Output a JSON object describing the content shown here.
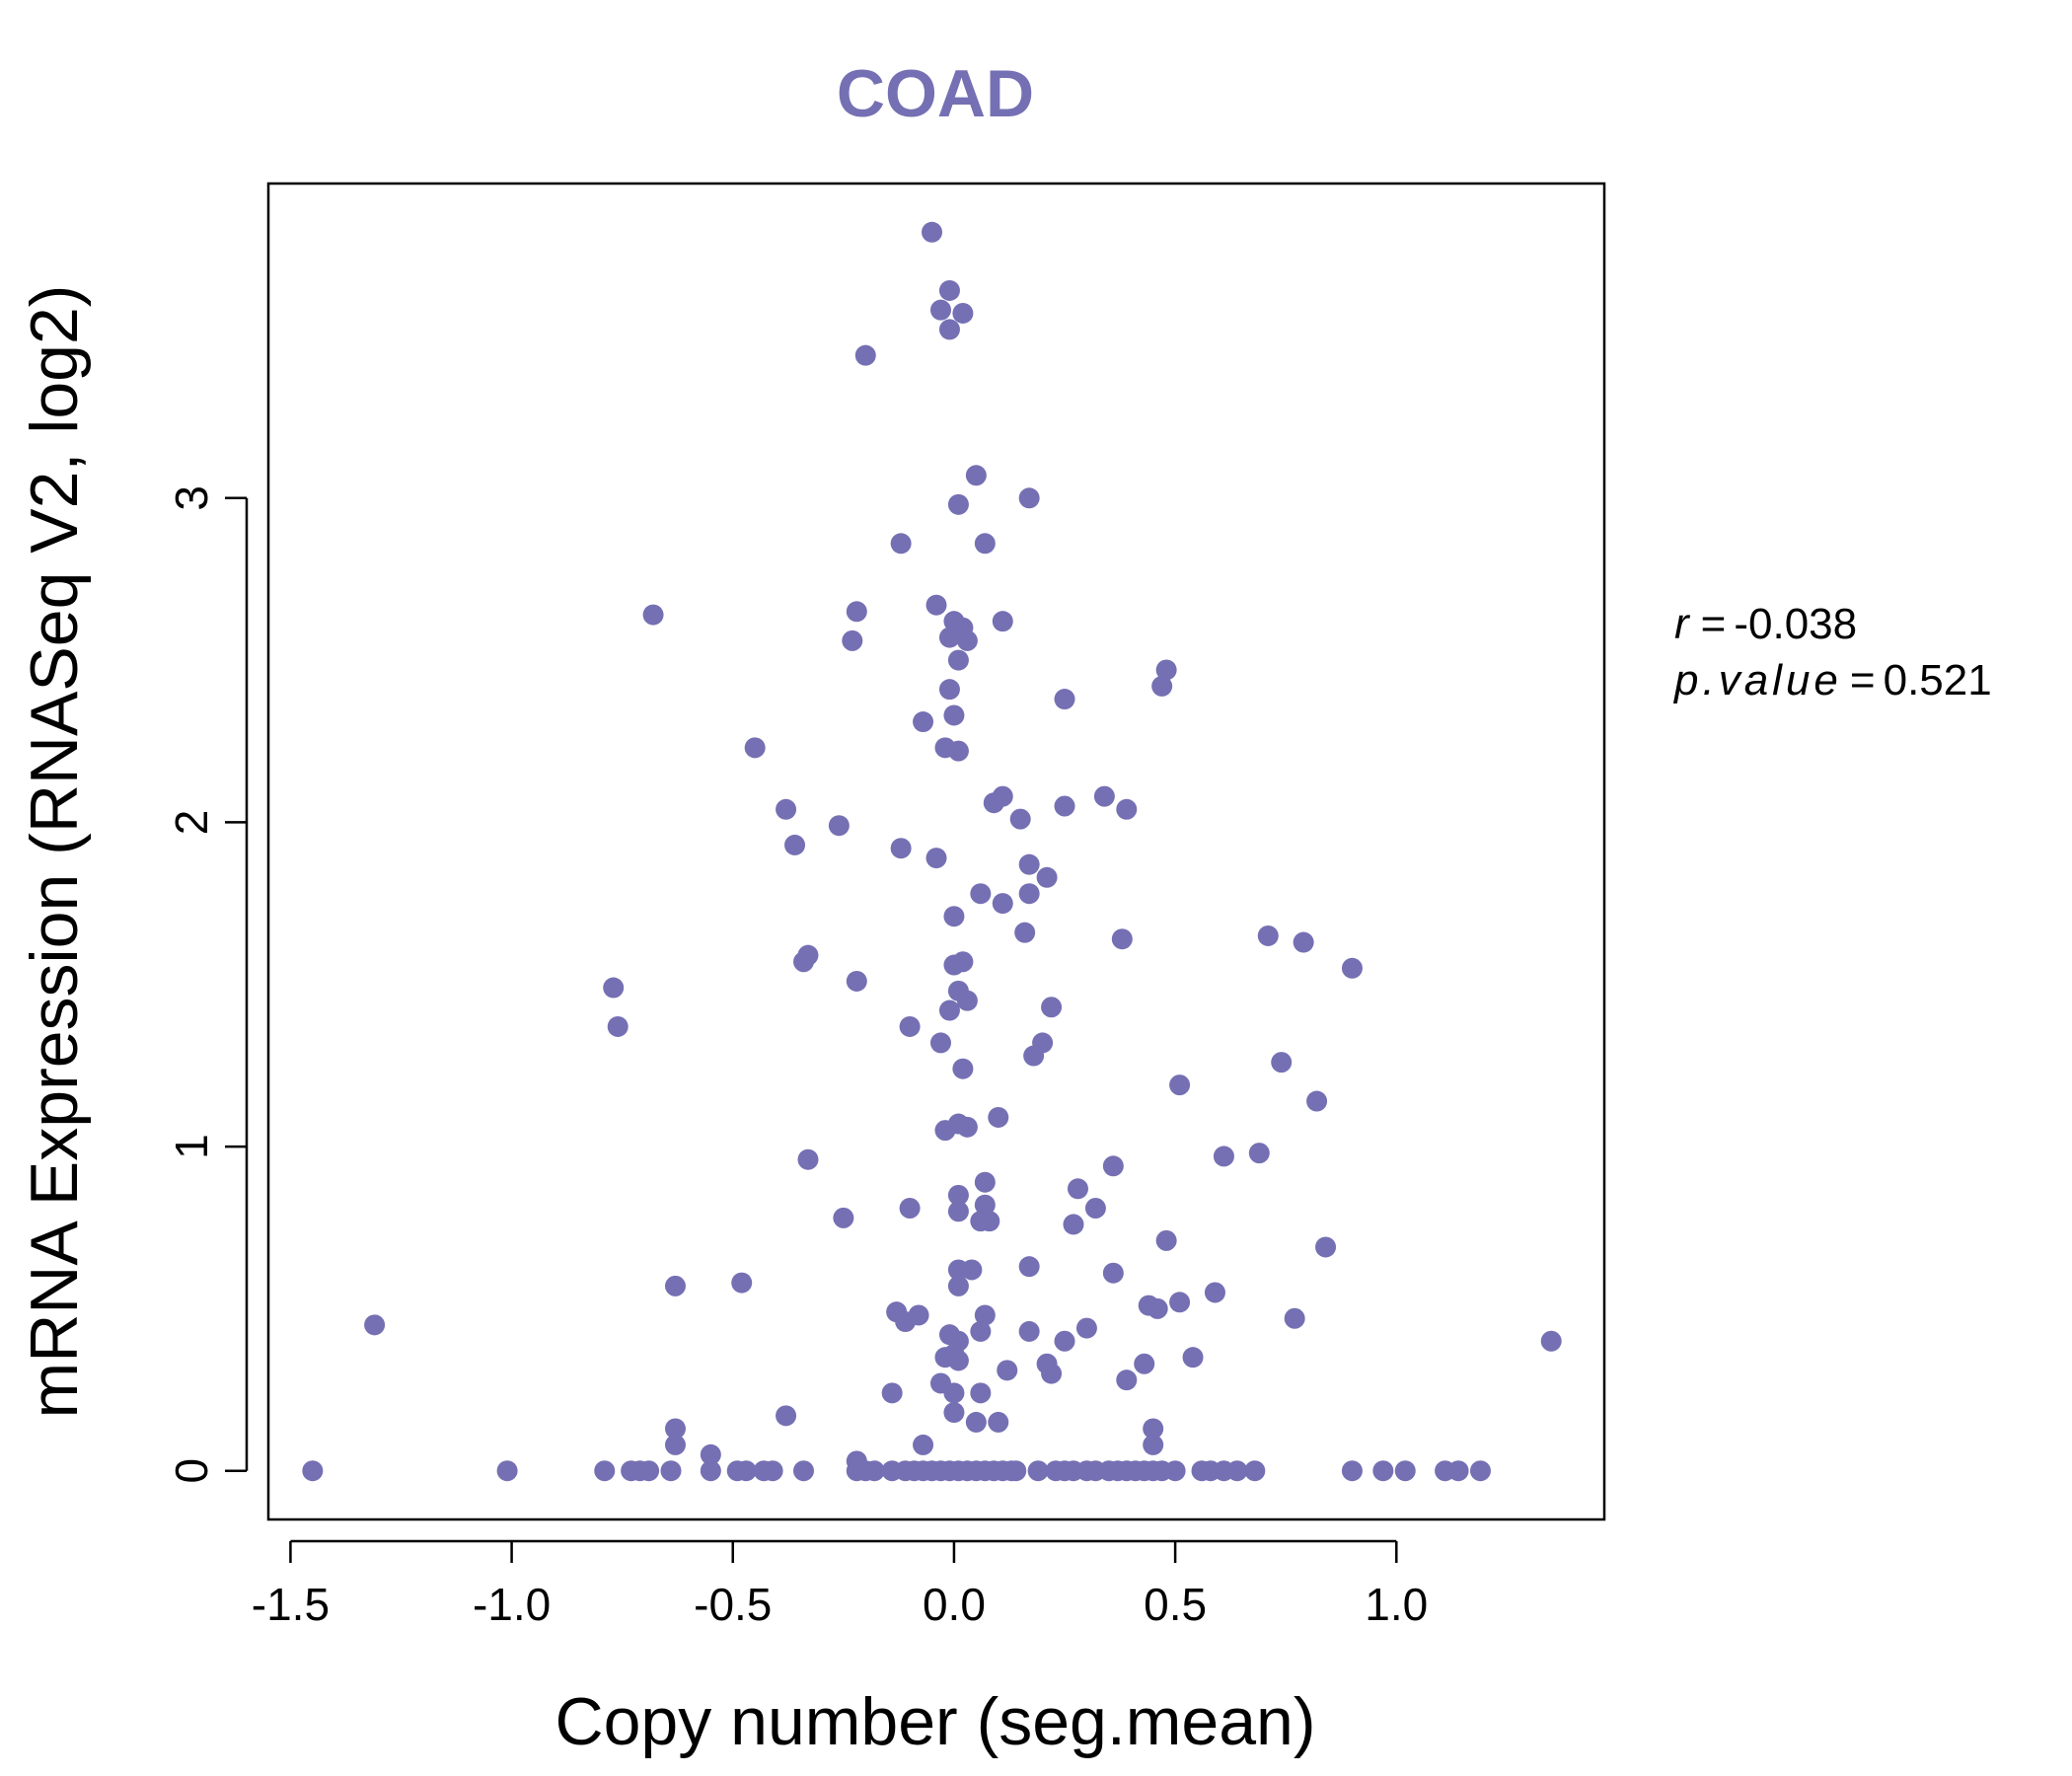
{
  "colors": {
    "point": "#7570b3",
    "title": "#7570b3",
    "axis": "#000000",
    "background": "#ffffff"
  },
  "chart_data": {
    "type": "scatter",
    "title": "COAD",
    "xlabel": "Copy number (seg.mean)",
    "ylabel": "mRNA Expression (RNASeq V2, log2)",
    "xlim": [
      -1.55,
      1.47
    ],
    "ylim": [
      -0.15,
      3.97
    ],
    "xticks": [
      -1.5,
      -1.0,
      -0.5,
      0.0,
      0.5,
      1.0
    ],
    "xtick_labels": [
      "-1.5",
      "-1.0",
      "-0.5",
      "0.0",
      "0.5",
      "1.0"
    ],
    "yticks": [
      0,
      1,
      2,
      3
    ],
    "ytick_labels": [
      "0",
      "1",
      "2",
      "3"
    ],
    "annotation": {
      "r_label": "r",
      "r_value": "-0.038",
      "p_label": "p.value",
      "p_value": "0.521",
      "equals": "="
    },
    "points": [
      [
        -0.05,
        3.82
      ],
      [
        -0.01,
        3.64
      ],
      [
        -0.03,
        3.58
      ],
      [
        0.02,
        3.57
      ],
      [
        -0.01,
        3.52
      ],
      [
        -0.2,
        3.44
      ],
      [
        0.05,
        3.07
      ],
      [
        0.17,
        3.0
      ],
      [
        0.01,
        2.98
      ],
      [
        -0.12,
        2.86
      ],
      [
        0.07,
        2.86
      ],
      [
        -0.68,
        2.64
      ],
      [
        -0.04,
        2.67
      ],
      [
        -0.22,
        2.65
      ],
      [
        0.0,
        2.62
      ],
      [
        0.11,
        2.62
      ],
      [
        0.02,
        2.6
      ],
      [
        -0.01,
        2.57
      ],
      [
        0.03,
        2.56
      ],
      [
        -0.23,
        2.56
      ],
      [
        0.01,
        2.5
      ],
      [
        0.48,
        2.47
      ],
      [
        0.47,
        2.42
      ],
      [
        -0.01,
        2.41
      ],
      [
        0.25,
        2.38
      ],
      [
        0.0,
        2.33
      ],
      [
        -0.07,
        2.31
      ],
      [
        -0.45,
        2.23
      ],
      [
        -0.02,
        2.23
      ],
      [
        0.01,
        2.22
      ],
      [
        0.11,
        2.08
      ],
      [
        0.34,
        2.08
      ],
      [
        0.09,
        2.06
      ],
      [
        0.25,
        2.05
      ],
      [
        0.39,
        2.04
      ],
      [
        -0.38,
        2.04
      ],
      [
        0.15,
        2.01
      ],
      [
        -0.26,
        1.99
      ],
      [
        -0.36,
        1.93
      ],
      [
        -0.12,
        1.92
      ],
      [
        -0.04,
        1.89
      ],
      [
        0.17,
        1.87
      ],
      [
        0.21,
        1.83
      ],
      [
        0.06,
        1.78
      ],
      [
        0.17,
        1.78
      ],
      [
        0.11,
        1.75
      ],
      [
        0.0,
        1.71
      ],
      [
        0.71,
        1.65
      ],
      [
        0.16,
        1.66
      ],
      [
        0.38,
        1.64
      ],
      [
        0.79,
        1.63
      ],
      [
        -0.33,
        1.59
      ],
      [
        -0.34,
        1.57
      ],
      [
        0.02,
        1.57
      ],
      [
        0.0,
        1.56
      ],
      [
        0.9,
        1.55
      ],
      [
        -0.22,
        1.51
      ],
      [
        -0.77,
        1.49
      ],
      [
        0.01,
        1.48
      ],
      [
        0.03,
        1.45
      ],
      [
        0.22,
        1.43
      ],
      [
        -0.01,
        1.42
      ],
      [
        -0.76,
        1.37
      ],
      [
        -0.1,
        1.37
      ],
      [
        -0.03,
        1.32
      ],
      [
        0.2,
        1.32
      ],
      [
        0.18,
        1.28
      ],
      [
        0.74,
        1.26
      ],
      [
        0.02,
        1.24
      ],
      [
        0.51,
        1.19
      ],
      [
        0.82,
        1.14
      ],
      [
        0.1,
        1.09
      ],
      [
        0.01,
        1.07
      ],
      [
        0.03,
        1.06
      ],
      [
        -0.02,
        1.05
      ],
      [
        0.61,
        0.97
      ],
      [
        0.69,
        0.98
      ],
      [
        -0.33,
        0.96
      ],
      [
        0.36,
        0.94
      ],
      [
        0.07,
        0.89
      ],
      [
        0.28,
        0.87
      ],
      [
        0.01,
        0.85
      ],
      [
        0.07,
        0.82
      ],
      [
        -0.1,
        0.81
      ],
      [
        0.32,
        0.81
      ],
      [
        0.01,
        0.8
      ],
      [
        -0.25,
        0.78
      ],
      [
        0.06,
        0.77
      ],
      [
        0.08,
        0.77
      ],
      [
        0.27,
        0.76
      ],
      [
        0.48,
        0.71
      ],
      [
        0.84,
        0.69
      ],
      [
        0.17,
        0.63
      ],
      [
        0.01,
        0.62
      ],
      [
        0.04,
        0.62
      ],
      [
        0.36,
        0.61
      ],
      [
        -0.48,
        0.58
      ],
      [
        -0.63,
        0.57
      ],
      [
        0.01,
        0.57
      ],
      [
        0.59,
        0.55
      ],
      [
        0.51,
        0.52
      ],
      [
        0.44,
        0.51
      ],
      [
        0.46,
        0.5
      ],
      [
        -0.13,
        0.49
      ],
      [
        0.07,
        0.48
      ],
      [
        -0.08,
        0.48
      ],
      [
        -0.11,
        0.46
      ],
      [
        0.77,
        0.47
      ],
      [
        -1.31,
        0.45
      ],
      [
        0.3,
        0.44
      ],
      [
        0.17,
        0.43
      ],
      [
        0.06,
        0.43
      ],
      [
        -0.01,
        0.42
      ],
      [
        0.01,
        0.4
      ],
      [
        0.25,
        0.4
      ],
      [
        1.35,
        0.4
      ],
      [
        0.0,
        0.36
      ],
      [
        -0.02,
        0.35
      ],
      [
        0.54,
        0.35
      ],
      [
        0.01,
        0.34
      ],
      [
        0.43,
        0.33
      ],
      [
        0.21,
        0.33
      ],
      [
        0.12,
        0.31
      ],
      [
        0.22,
        0.3
      ],
      [
        0.39,
        0.28
      ],
      [
        -0.03,
        0.27
      ],
      [
        0.0,
        0.24
      ],
      [
        0.06,
        0.24
      ],
      [
        -0.14,
        0.24
      ],
      [
        0.0,
        0.18
      ],
      [
        -0.38,
        0.17
      ],
      [
        0.05,
        0.15
      ],
      [
        0.1,
        0.15
      ],
      [
        -0.63,
        0.13
      ],
      [
        0.45,
        0.13
      ],
      [
        -0.63,
        0.08
      ],
      [
        -0.07,
        0.08
      ],
      [
        0.45,
        0.08
      ],
      [
        -0.55,
        0.05
      ],
      [
        -0.22,
        0.03
      ],
      [
        -1.45,
        0.0
      ],
      [
        -1.01,
        0.0
      ],
      [
        -0.79,
        0.0
      ],
      [
        -0.73,
        0.0
      ],
      [
        -0.71,
        0.0
      ],
      [
        -0.69,
        0.0
      ],
      [
        -0.64,
        0.0
      ],
      [
        -0.55,
        0.0
      ],
      [
        -0.49,
        0.0
      ],
      [
        -0.47,
        0.0
      ],
      [
        -0.43,
        0.0
      ],
      [
        -0.41,
        0.0
      ],
      [
        -0.34,
        0.0
      ],
      [
        -0.22,
        0.0
      ],
      [
        -0.2,
        0.0
      ],
      [
        -0.18,
        0.0
      ],
      [
        -0.14,
        0.0
      ],
      [
        -0.11,
        0.0
      ],
      [
        -0.09,
        0.0
      ],
      [
        -0.07,
        0.0
      ],
      [
        -0.05,
        0.0
      ],
      [
        -0.03,
        0.0
      ],
      [
        -0.01,
        0.0
      ],
      [
        0.01,
        0.0
      ],
      [
        0.03,
        0.0
      ],
      [
        0.05,
        0.0
      ],
      [
        0.07,
        0.0
      ],
      [
        0.09,
        0.0
      ],
      [
        0.11,
        0.0
      ],
      [
        0.13,
        0.0
      ],
      [
        0.14,
        0.0
      ],
      [
        0.19,
        0.0
      ],
      [
        0.23,
        0.0
      ],
      [
        0.25,
        0.0
      ],
      [
        0.27,
        0.0
      ],
      [
        0.3,
        0.0
      ],
      [
        0.32,
        0.0
      ],
      [
        0.35,
        0.0
      ],
      [
        0.37,
        0.0
      ],
      [
        0.39,
        0.0
      ],
      [
        0.41,
        0.0
      ],
      [
        0.43,
        0.0
      ],
      [
        0.45,
        0.0
      ],
      [
        0.47,
        0.0
      ],
      [
        0.5,
        0.0
      ],
      [
        0.56,
        0.0
      ],
      [
        0.58,
        0.0
      ],
      [
        0.61,
        0.0
      ],
      [
        0.64,
        0.0
      ],
      [
        0.68,
        0.0
      ],
      [
        0.9,
        0.0
      ],
      [
        0.97,
        0.0
      ],
      [
        1.02,
        0.0
      ],
      [
        1.11,
        0.0
      ],
      [
        1.14,
        0.0
      ],
      [
        1.19,
        0.0
      ]
    ]
  }
}
